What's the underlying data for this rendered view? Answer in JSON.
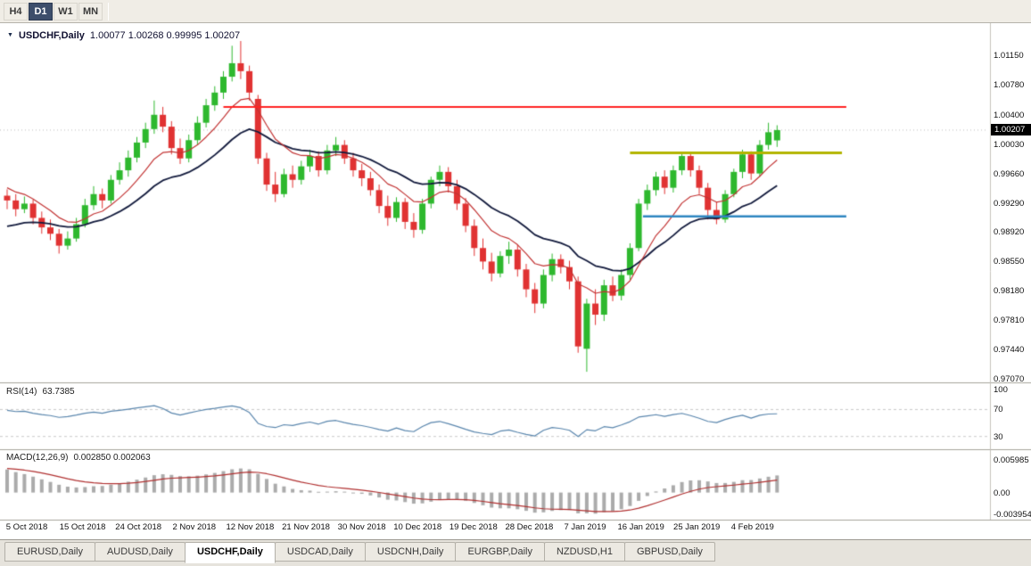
{
  "toolbar": {
    "timeframes": [
      {
        "label": "H4",
        "active": false
      },
      {
        "label": "D1",
        "active": true
      },
      {
        "label": "W1",
        "active": false
      },
      {
        "label": "MN",
        "active": false
      }
    ]
  },
  "chart": {
    "symbol_label": "USDCHF,Daily",
    "ohlc_text": "1.00077 1.00268 0.99995 1.00207",
    "current_price": "1.00207",
    "price_axis_ticks": [
      "1.01150",
      "1.00780",
      "1.00400",
      "1.00030",
      "0.99660",
      "0.99290",
      "0.98920",
      "0.98550",
      "0.98180",
      "0.97810",
      "0.97440",
      "0.97070"
    ]
  },
  "rsi_panel": {
    "label": "RSI(14)",
    "value": "63.7385",
    "axis_ticks": [
      "100",
      "70",
      "30"
    ],
    "dashed_levels": [
      70,
      30
    ]
  },
  "macd_panel": {
    "label": "MACD(12,26,9)",
    "values": "0.002850 0.002063",
    "axis_ticks": [
      "0.005985",
      "0.00",
      "-0.003954"
    ]
  },
  "date_axis": [
    "5 Oct 2018",
    "15 Oct 2018",
    "24 Oct 2018",
    "2 Nov 2018",
    "12 Nov 2018",
    "21 Nov 2018",
    "30 Nov 2018",
    "10 Dec 2018",
    "19 Dec 2018",
    "28 Dec 2018",
    "7 Jan 2019",
    "16 Jan 2019",
    "25 Jan 2019",
    "4 Feb 2019"
  ],
  "tabs": [
    {
      "label": "EURUSD,Daily",
      "active": false
    },
    {
      "label": "AUDUSD,Daily",
      "active": false
    },
    {
      "label": "USDCHF,Daily",
      "active": true
    },
    {
      "label": "USDCAD,Daily",
      "active": false
    },
    {
      "label": "USDCNH,Daily",
      "active": false
    },
    {
      "label": "EURGBP,Daily",
      "active": false
    },
    {
      "label": "NZDUSD,H1",
      "active": false
    },
    {
      "label": "GBPUSD,Daily",
      "active": false
    }
  ],
  "chart_data": {
    "type": "candlestick",
    "symbol": "USDCHF",
    "timeframe": "Daily",
    "price_range": {
      "min": 0.9706,
      "max": 1.0151
    },
    "rsi_range": {
      "min": 15,
      "max": 105
    },
    "macd_range": {
      "min": -0.005,
      "max": 0.0075
    },
    "levels": [
      {
        "name": "resistance-line",
        "color": "#ff2222",
        "width": 2,
        "price": 1.005,
        "from": 25,
        "to": 97
      },
      {
        "name": "supply-line",
        "color": "#b3b400",
        "width": 3,
        "price": 0.9992,
        "from": 72,
        "to": 96.5
      },
      {
        "name": "support-line",
        "color": "#2e86c0",
        "width": 2.5,
        "price": 0.9912,
        "from": 73.5,
        "to": 97
      }
    ],
    "colors": {
      "bull": "#2eb82e",
      "bear": "#e03232",
      "ma_fast": "#c23434",
      "ma_slow": "#121a3c",
      "rsi": "#5a86ad",
      "macd_hist": "#ababab",
      "macd_signal": "#b03030",
      "badge_bg": "#000000"
    },
    "ohlc": [
      [
        0.9938,
        0.9946,
        0.9921,
        0.9932
      ],
      [
        0.9932,
        0.994,
        0.9912,
        0.9921
      ],
      [
        0.9921,
        0.9937,
        0.9916,
        0.9928
      ],
      [
        0.9928,
        0.9933,
        0.9902,
        0.991
      ],
      [
        0.991,
        0.9918,
        0.989,
        0.9898
      ],
      [
        0.9898,
        0.9908,
        0.9882,
        0.989
      ],
      [
        0.989,
        0.9896,
        0.9865,
        0.9875
      ],
      [
        0.9875,
        0.9893,
        0.987,
        0.9884
      ],
      [
        0.9884,
        0.991,
        0.988,
        0.9902
      ],
      [
        0.9902,
        0.9934,
        0.9898,
        0.9926
      ],
      [
        0.9926,
        0.995,
        0.992,
        0.994
      ],
      [
        0.994,
        0.9947,
        0.9922,
        0.9932
      ],
      [
        0.9932,
        0.9964,
        0.9928,
        0.9958
      ],
      [
        0.9958,
        0.998,
        0.9952,
        0.997
      ],
      [
        0.997,
        0.9995,
        0.9962,
        0.9986
      ],
      [
        0.9986,
        1.0012,
        0.998,
        1.0005
      ],
      [
        1.0005,
        1.003,
        0.9998,
        1.0022
      ],
      [
        1.0022,
        1.0058,
        1.0016,
        1.004
      ],
      [
        1.004,
        1.005,
        1.0018,
        1.0025
      ],
      [
        1.0025,
        1.0032,
        0.999,
        0.9998
      ],
      [
        0.9998,
        1.001,
        0.9978,
        0.9985
      ],
      [
        0.9985,
        1.0015,
        0.998,
        1.0008
      ],
      [
        1.0008,
        1.0038,
        1.0002,
        1.003
      ],
      [
        1.003,
        1.006,
        1.0024,
        1.0052
      ],
      [
        1.0052,
        1.0076,
        1.0045,
        1.0068
      ],
      [
        1.0068,
        1.0095,
        1.006,
        1.0088
      ],
      [
        1.0088,
        1.0127,
        1.0082,
        1.0105
      ],
      [
        1.0105,
        1.0133,
        1.0085,
        1.0095
      ],
      [
        1.0095,
        1.0102,
        1.0058,
        1.0068
      ],
      [
        1.006,
        1.0065,
        0.9978,
        0.9985
      ],
      [
        0.9985,
        0.9992,
        0.9944,
        0.9952
      ],
      [
        0.9952,
        0.9968,
        0.993,
        0.994
      ],
      [
        0.994,
        0.9972,
        0.9936,
        0.9965
      ],
      [
        0.9965,
        0.9976,
        0.9948,
        0.9958
      ],
      [
        0.9958,
        0.9982,
        0.9952,
        0.9975
      ],
      [
        0.9975,
        0.9996,
        0.9968,
        0.9988
      ],
      [
        0.9988,
        0.9994,
        0.9962,
        0.997
      ],
      [
        0.997,
        1.0002,
        0.9965,
        0.9995
      ],
      [
        0.9995,
        1.0012,
        0.9988,
        1.0002
      ],
      [
        1.0002,
        1.0008,
        0.9978,
        0.9985
      ],
      [
        0.9985,
        0.9992,
        0.9962,
        0.997
      ],
      [
        0.997,
        0.9978,
        0.995,
        0.996
      ],
      [
        0.996,
        0.9968,
        0.9938,
        0.9945
      ],
      [
        0.9945,
        0.9952,
        0.9916,
        0.9925
      ],
      [
        0.9925,
        0.9938,
        0.99,
        0.991
      ],
      [
        0.991,
        0.9936,
        0.9905,
        0.993
      ],
      [
        0.993,
        0.9935,
        0.9896,
        0.9905
      ],
      [
        0.9905,
        0.9916,
        0.9885,
        0.9895
      ],
      [
        0.9895,
        0.9934,
        0.989,
        0.9928
      ],
      [
        0.9928,
        0.9962,
        0.9922,
        0.9958
      ],
      [
        0.9958,
        0.9976,
        0.995,
        0.9968
      ],
      [
        0.9968,
        0.9974,
        0.9942,
        0.995
      ],
      [
        0.995,
        0.9958,
        0.992,
        0.9928
      ],
      [
        0.9928,
        0.9935,
        0.9892,
        0.99
      ],
      [
        0.99,
        0.9908,
        0.9862,
        0.9872
      ],
      [
        0.9872,
        0.9884,
        0.9845,
        0.9855
      ],
      [
        0.9855,
        0.9866,
        0.983,
        0.984
      ],
      [
        0.984,
        0.9868,
        0.9835,
        0.9862
      ],
      [
        0.9862,
        0.988,
        0.9852,
        0.987
      ],
      [
        0.987,
        0.9876,
        0.9836,
        0.9845
      ],
      [
        0.9845,
        0.9852,
        0.981,
        0.982
      ],
      [
        0.982,
        0.9828,
        0.979,
        0.9802
      ],
      [
        0.9802,
        0.9845,
        0.9796,
        0.9838
      ],
      [
        0.9838,
        0.9865,
        0.983,
        0.9858
      ],
      [
        0.9858,
        0.9864,
        0.984,
        0.9848
      ],
      [
        0.9848,
        0.9856,
        0.982,
        0.983
      ],
      [
        0.983,
        0.9836,
        0.974,
        0.9748
      ],
      [
        0.9745,
        0.9808,
        0.9716,
        0.9802
      ],
      [
        0.9802,
        0.982,
        0.9775,
        0.9788
      ],
      [
        0.9788,
        0.9832,
        0.978,
        0.9825
      ],
      [
        0.9825,
        0.9836,
        0.9805,
        0.9812
      ],
      [
        0.9812,
        0.9845,
        0.9806,
        0.9838
      ],
      [
        0.9838,
        0.9878,
        0.9832,
        0.9872
      ],
      [
        0.9872,
        0.9934,
        0.9868,
        0.9928
      ],
      [
        0.9928,
        0.9952,
        0.992,
        0.9945
      ],
      [
        0.9945,
        0.9968,
        0.9938,
        0.9962
      ],
      [
        0.9962,
        0.997,
        0.994,
        0.9948
      ],
      [
        0.9948,
        0.9976,
        0.9942,
        0.997
      ],
      [
        0.997,
        0.9993,
        0.9964,
        0.9988
      ],
      [
        0.9988,
        0.9992,
        0.9962,
        0.997
      ],
      [
        0.997,
        0.9976,
        0.994,
        0.9948
      ],
      [
        0.9948,
        0.9954,
        0.9908,
        0.992
      ],
      [
        0.992,
        0.993,
        0.9902,
        0.9908
      ],
      [
        0.9908,
        0.9945,
        0.9904,
        0.994
      ],
      [
        0.994,
        0.9972,
        0.9936,
        0.9968
      ],
      [
        0.9968,
        0.9996,
        0.996,
        0.999
      ],
      [
        0.999,
        0.9994,
        0.9958,
        0.9966
      ],
      [
        0.9966,
        1.0008,
        0.9962,
        1.0002
      ],
      [
        1.0002,
        1.003,
        0.9996,
        1.0018
      ],
      [
        1.00077,
        1.00268,
        0.99995,
        1.00207
      ]
    ]
  }
}
